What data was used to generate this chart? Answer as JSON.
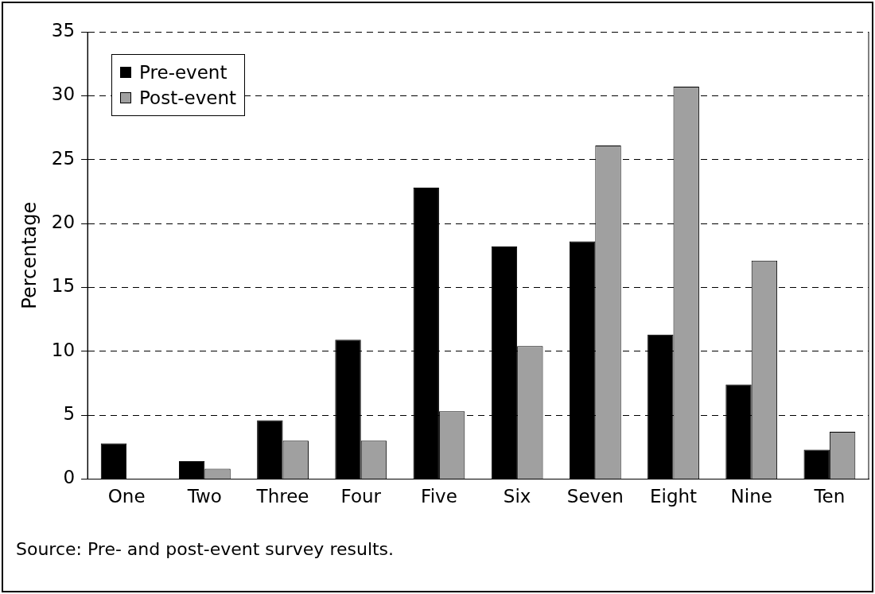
{
  "chart_data": {
    "type": "bar",
    "ylabel": "Percentage",
    "categories": [
      "One",
      "Two",
      "Three",
      "Four",
      "Five",
      "Six",
      "Seven",
      "Eight",
      "Nine",
      "Ten"
    ],
    "series": [
      {
        "name": "Pre-event",
        "color": "#000000",
        "values": [
          2.8,
          1.4,
          4.6,
          10.9,
          22.8,
          18.2,
          18.6,
          11.3,
          7.4,
          2.3
        ]
      },
      {
        "name": "Post-event",
        "color": "#a0a0a0",
        "values": [
          0,
          0.8,
          3.0,
          3.0,
          5.3,
          10.4,
          26.1,
          30.7,
          17.1,
          3.7
        ]
      }
    ],
    "ylim": [
      0,
      35
    ],
    "yticks": [
      0,
      5,
      10,
      15,
      20,
      25,
      30,
      35
    ],
    "grid": "y",
    "legend": "top left",
    "annotations": [
      "Source: Pre- and post-event survey results."
    ]
  }
}
